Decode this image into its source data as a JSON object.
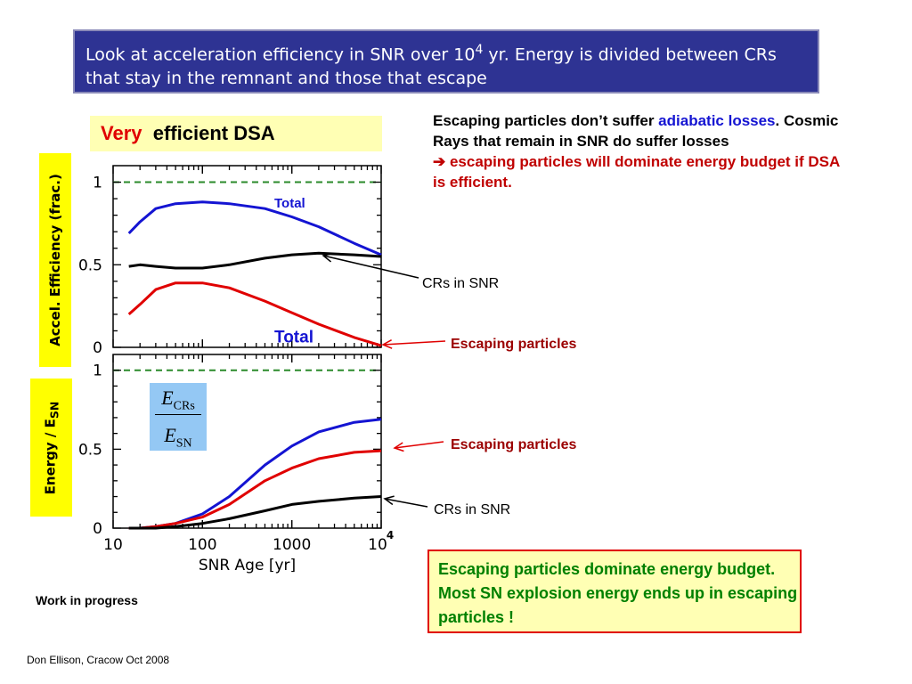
{
  "slide": {
    "title_part1": "Look at acceleration efficiency in SNR over 10",
    "title_sup": "4",
    "title_part2": " yr. Energy is divided between CRs that stay in the remnant and those that escape",
    "subtitle_very": "Very",
    "subtitle_rest": "efficient DSA",
    "note_part1": "Escaping particles don’t suffer ",
    "note_highlight": "adiabatic losses",
    "note_part2": ". Cosmic Rays that remain in SNR do suffer losses",
    "note_arrow": "➔",
    "note_conclusion": " escaping particles will dominate energy budget if DSA is efficient.",
    "ylabel_top": "Accel. Efficiency (frac.)",
    "ylabel_bottom_main": "Energy / E",
    "ylabel_bottom_sub": "SN",
    "fraction_numerator": "E",
    "fraction_numerator_sub": "CRs",
    "fraction_denominator": "E",
    "fraction_denominator_sub": "SN",
    "conclusion": "Escaping particles dominate energy budget.  Most SN explosion energy ends up in escaping particles !",
    "work_in_progress": "Work in progress",
    "footer": "Don Ellison, Cracow Oct 2008",
    "colors": {
      "title_bg": "#2e3393",
      "highlight_yellow": "#ffffb4",
      "label_yellow": "#ffff00",
      "total": "#1414d2",
      "escaping": "#e00000",
      "in_snr": "#000000",
      "conclusion_text": "#008000"
    }
  },
  "chart_data": [
    {
      "type": "line",
      "x_scale": "log",
      "xlim": [
        10,
        10000
      ],
      "ylim": [
        0,
        1.1
      ],
      "y_ticks": [
        "0",
        "0.5",
        "1"
      ],
      "reference_line_y": 1,
      "series": [
        {
          "key": "total",
          "label": "Total",
          "color": "#1414d2",
          "x": [
            15,
            20,
            30,
            50,
            100,
            200,
            500,
            1000,
            2000,
            5000,
            10000
          ],
          "y": [
            0.69,
            0.76,
            0.84,
            0.87,
            0.88,
            0.87,
            0.84,
            0.79,
            0.73,
            0.63,
            0.56
          ]
        },
        {
          "key": "in_snr",
          "label": "CRs in SNR",
          "color": "#000000",
          "x": [
            15,
            20,
            30,
            50,
            100,
            200,
            500,
            1000,
            2000,
            5000,
            10000
          ],
          "y": [
            0.49,
            0.5,
            0.49,
            0.48,
            0.48,
            0.5,
            0.54,
            0.56,
            0.57,
            0.56,
            0.55
          ]
        },
        {
          "key": "escaping",
          "label": "Escaping particles",
          "color": "#e00000",
          "x": [
            15,
            20,
            30,
            50,
            100,
            200,
            500,
            1000,
            2000,
            5000,
            10000
          ],
          "y": [
            0.2,
            0.26,
            0.35,
            0.39,
            0.39,
            0.36,
            0.28,
            0.21,
            0.14,
            0.06,
            0.01
          ]
        }
      ]
    },
    {
      "type": "line",
      "x_scale": "log",
      "xlim": [
        10,
        10000
      ],
      "ylim": [
        0,
        1.1
      ],
      "y_ticks": [
        "0",
        "0.5",
        "1"
      ],
      "x_tick_labels": [
        "10",
        "100",
        "1000",
        "10",
        "4"
      ],
      "xlabel": "SNR Age [yr]",
      "reference_line_y": 1,
      "series": [
        {
          "key": "total",
          "label": "Total",
          "color": "#1414d2",
          "x": [
            15,
            20,
            30,
            50,
            100,
            200,
            500,
            1000,
            2000,
            5000,
            10000
          ],
          "y": [
            0.0,
            0.0,
            0.01,
            0.03,
            0.09,
            0.2,
            0.4,
            0.52,
            0.61,
            0.67,
            0.69
          ]
        },
        {
          "key": "escaping",
          "label": "Escaping particles",
          "color": "#e00000",
          "x": [
            15,
            20,
            30,
            50,
            100,
            200,
            500,
            1000,
            2000,
            5000,
            10000
          ],
          "y": [
            0.0,
            0.0,
            0.01,
            0.03,
            0.07,
            0.15,
            0.3,
            0.38,
            0.44,
            0.48,
            0.49
          ]
        },
        {
          "key": "in_snr",
          "label": "CRs in SNR",
          "color": "#000000",
          "x": [
            15,
            20,
            30,
            50,
            100,
            200,
            500,
            1000,
            2000,
            5000,
            10000
          ],
          "y": [
            0.0,
            0.0,
            0.0,
            0.01,
            0.03,
            0.06,
            0.11,
            0.15,
            0.17,
            0.19,
            0.2
          ]
        }
      ]
    }
  ]
}
